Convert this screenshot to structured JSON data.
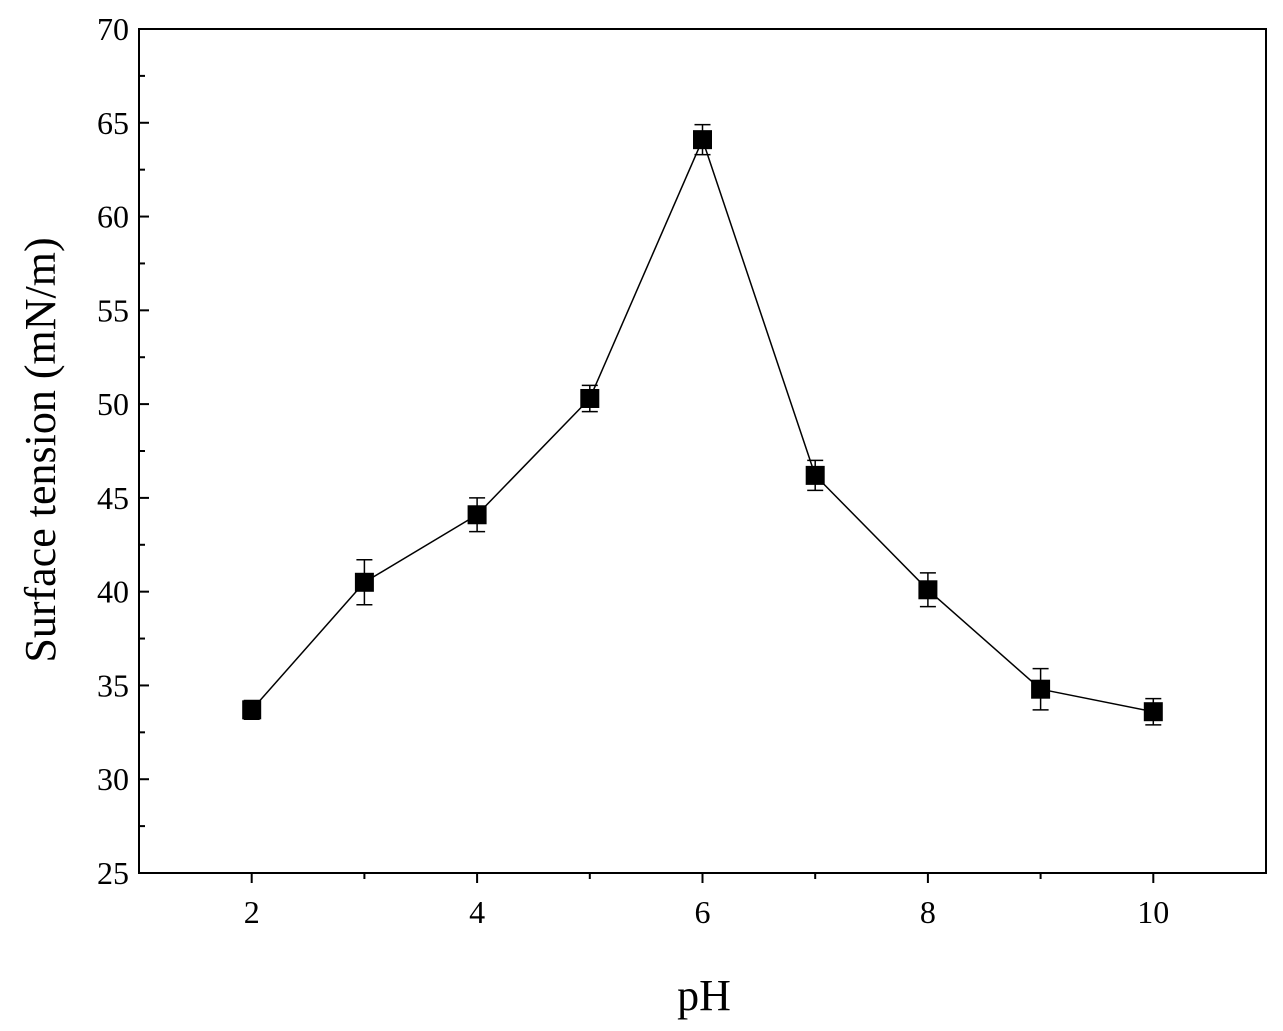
{
  "chart_data": {
    "type": "line",
    "title": "",
    "xlabel": "pH",
    "ylabel": "Surface tension (mN/m)",
    "xlim": [
      1,
      11
    ],
    "ylim": [
      25,
      70
    ],
    "x_ticks": [
      2,
      4,
      6,
      8,
      10
    ],
    "y_ticks": [
      25,
      30,
      35,
      40,
      45,
      50,
      55,
      60,
      65,
      70
    ],
    "grid": false,
    "legend": "none",
    "series": [
      {
        "x": [
          2,
          3,
          4,
          5,
          6,
          7,
          8,
          9,
          10
        ],
        "y": [
          33.7,
          40.5,
          44.1,
          50.3,
          64.1,
          46.2,
          40.1,
          34.8,
          33.6
        ],
        "yerr": [
          0.5,
          1.2,
          0.9,
          0.7,
          0.8,
          0.8,
          0.9,
          1.1,
          0.7
        ],
        "marker": "square",
        "color": "#000000"
      }
    ]
  }
}
